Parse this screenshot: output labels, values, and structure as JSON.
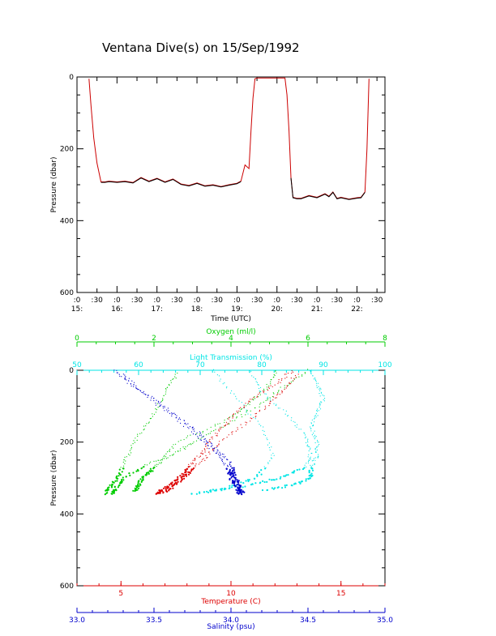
{
  "title": "Ventana Dive(s) on 15/Sep/1992",
  "colors": {
    "pressure_line": "#cc0000",
    "pressure_overlay": "#000000",
    "oxygen": "#00cc00",
    "light": "#00e5e5",
    "temperature": "#dd0000",
    "salinity": "#0000cc",
    "axis": "#000000"
  },
  "chart_data": [
    {
      "type": "line",
      "xlabel": "Time (UTC)",
      "ylabel": "Pressure (dbar)",
      "ylim": [
        600,
        0
      ],
      "ytick_labels": [
        "0",
        "200",
        "400",
        "600"
      ],
      "xtick_labels_top": [
        ":0",
        ":30",
        ":0",
        ":30",
        ":0",
        ":30",
        ":0",
        ":30",
        ":0",
        ":30",
        ":0",
        ":30",
        ":0",
        ":30",
        ":0",
        ":30"
      ],
      "xtick_labels_bottom": [
        "15:",
        "16:",
        "17:",
        "18:",
        "19:",
        "20:",
        "21:",
        "22:"
      ],
      "xlim_hours": [
        15.0,
        22.7
      ],
      "series": [
        {
          "x_hours": [
            15.3,
            15.35,
            15.42,
            15.5,
            15.6,
            15.7,
            15.8,
            16.0,
            16.2,
            16.4,
            16.6,
            16.8,
            17.0,
            17.2,
            17.4,
            17.6,
            17.8,
            18.0,
            18.2,
            18.4,
            18.6,
            18.8,
            19.0,
            19.1,
            19.2,
            19.3,
            19.35,
            19.4,
            19.45,
            19.5,
            20.0,
            20.2,
            20.25,
            20.3,
            20.35,
            20.4,
            20.5,
            20.6,
            20.8,
            21.0,
            21.2,
            21.3,
            21.4,
            21.5,
            21.6,
            21.8,
            22.0,
            22.1,
            22.2,
            22.25,
            22.3
          ],
          "pressure": [
            5,
            80,
            170,
            240,
            292,
            292,
            290,
            292,
            290,
            294,
            280,
            290,
            282,
            292,
            284,
            298,
            302,
            295,
            303,
            300,
            305,
            300,
            296,
            290,
            245,
            255,
            150,
            60,
            5,
            3,
            3,
            3,
            50,
            150,
            280,
            335,
            338,
            338,
            330,
            335,
            325,
            332,
            320,
            338,
            335,
            340,
            336,
            335,
            320,
            200,
            5
          ]
        }
      ]
    },
    {
      "type": "scatter",
      "ylabel": "Pressure (dbar)",
      "ylim": [
        600,
        0
      ],
      "ytick_labels": [
        "0",
        "200",
        "400",
        "600"
      ],
      "axes": {
        "oxygen": {
          "label": "Oxygen (ml/l)",
          "range": [
            0,
            8
          ],
          "ticks": [
            0,
            2,
            4,
            6,
            8
          ],
          "tick_labels": [
            "0",
            "2",
            "4",
            "6",
            "8"
          ]
        },
        "light": {
          "label": "Light Transmission (%)",
          "range": [
            50,
            100
          ],
          "ticks": [
            50,
            60,
            70,
            80,
            90,
            100
          ],
          "tick_labels": [
            "50",
            "60",
            "70",
            "80",
            "90",
            "100"
          ]
        },
        "temperature": {
          "label": "Temperature (C)",
          "range": [
            3,
            17
          ],
          "ticks": [
            5,
            10,
            15
          ],
          "tick_labels": [
            "5",
            "10",
            "15"
          ]
        },
        "salinity": {
          "label": "Salinity (psu)",
          "range": [
            33.0,
            35.0
          ],
          "ticks": [
            33.0,
            33.5,
            34.0,
            34.5,
            35.0
          ],
          "tick_labels": [
            "33.0",
            "33.5",
            "34.0",
            "34.5",
            "35.0"
          ]
        }
      },
      "series": [
        {
          "key": "oxygen",
          "profiles": [
            {
              "p": [
                0,
                50,
                100,
                150,
                200,
                250,
                280,
                300,
                320,
                340
              ],
              "v": [
                5.2,
                4.9,
                4.4,
                3.7,
                2.6,
                2.2,
                1.9,
                1.7,
                1.6,
                1.5
              ]
            },
            {
              "p": [
                0,
                50,
                100,
                150,
                200,
                230,
                260,
                300,
                330,
                345
              ],
              "v": [
                6.0,
                5.3,
                4.7,
                3.9,
                3.0,
                2.6,
                1.9,
                1.2,
                1.0,
                0.9
              ]
            },
            {
              "p": [
                10,
                60,
                120,
                180,
                240,
                290,
                320,
                345
              ],
              "v": [
                2.6,
                2.3,
                2.0,
                1.6,
                1.3,
                1.1,
                0.9,
                0.7
              ]
            }
          ]
        },
        {
          "key": "light",
          "profiles": [
            {
              "p": [
                0,
                40,
                80,
                120,
                160,
                200,
                240,
                270,
                300,
                320,
                335
              ],
              "v": [
                88,
                89,
                90,
                89,
                88,
                89,
                89,
                88,
                88,
                85,
                80
              ]
            },
            {
              "p": [
                0,
                60,
                120,
                180,
                230,
                270,
                300,
                320,
                340
              ],
              "v": [
                78,
                80,
                84,
                87,
                88,
                87,
                83,
                78,
                70
              ]
            },
            {
              "p": [
                0,
                80,
                160,
                240,
                300,
                330,
                345
              ],
              "v": [
                72,
                76,
                80,
                82,
                79,
                74,
                68
              ]
            }
          ]
        },
        {
          "key": "temperature",
          "profiles": [
            {
              "p": [
                0,
                40,
                80,
                120,
                160,
                200,
                230,
                260,
                290,
                320,
                340
              ],
              "v": [
                12.8,
                12.0,
                11.0,
                10.2,
                9.6,
                9.0,
                8.7,
                8.2,
                7.8,
                7.2,
                6.7
              ]
            },
            {
              "p": [
                10,
                60,
                100,
                150,
                200,
                240,
                280,
                310,
                335,
                345
              ],
              "v": [
                13.0,
                12.3,
                11.6,
                10.6,
                9.5,
                8.9,
                8.2,
                7.6,
                7.1,
                6.5
              ]
            }
          ]
        },
        {
          "key": "salinity",
          "profiles": [
            {
              "p": [
                0,
                40,
                80,
                120,
                160,
                200,
                230,
                260,
                290,
                320,
                345
              ],
              "v": [
                33.25,
                33.35,
                33.5,
                33.62,
                33.75,
                33.85,
                33.93,
                34.0,
                34.02,
                34.05,
                34.08
              ]
            },
            {
              "p": [
                10,
                60,
                120,
                180,
                230,
                270,
                300,
                330,
                345
              ],
              "v": [
                33.3,
                33.42,
                33.6,
                33.78,
                33.9,
                33.98,
                34.0,
                34.04,
                34.06
              ]
            }
          ]
        }
      ]
    }
  ]
}
